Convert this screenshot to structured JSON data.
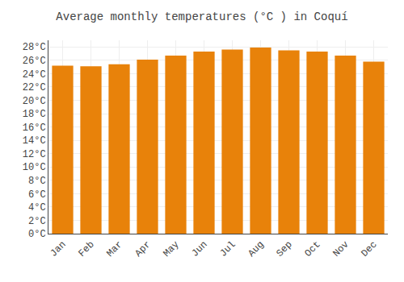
{
  "chart_data": {
    "type": "bar",
    "title": "Average monthly temperatures (°C ) in Coquí",
    "categories": [
      "Jan",
      "Feb",
      "Mar",
      "Apr",
      "May",
      "Jun",
      "Jul",
      "Aug",
      "Sep",
      "Oct",
      "Nov",
      "Dec"
    ],
    "values": [
      25.2,
      25.1,
      25.4,
      26.1,
      26.7,
      27.3,
      27.6,
      27.9,
      27.5,
      27.3,
      26.7,
      25.8
    ],
    "color": "#E8820A",
    "ylim": [
      0,
      29
    ],
    "yticks": [
      {
        "value": 0,
        "label": "0°C"
      },
      {
        "value": 2,
        "label": "2°C"
      },
      {
        "value": 4,
        "label": "4°C"
      },
      {
        "value": 6,
        "label": "6°C"
      },
      {
        "value": 8,
        "label": "8°C"
      },
      {
        "value": 10,
        "label": "10°C"
      },
      {
        "value": 12,
        "label": "12°C"
      },
      {
        "value": 14,
        "label": "14°C"
      },
      {
        "value": 16,
        "label": "16°C"
      },
      {
        "value": 18,
        "label": "18°C"
      },
      {
        "value": 20,
        "label": "20°C"
      },
      {
        "value": 22,
        "label": "22°C"
      },
      {
        "value": 24,
        "label": "24°C"
      },
      {
        "value": 26,
        "label": "26°C"
      },
      {
        "value": 28,
        "label": "28°C"
      }
    ],
    "grid": true
  }
}
